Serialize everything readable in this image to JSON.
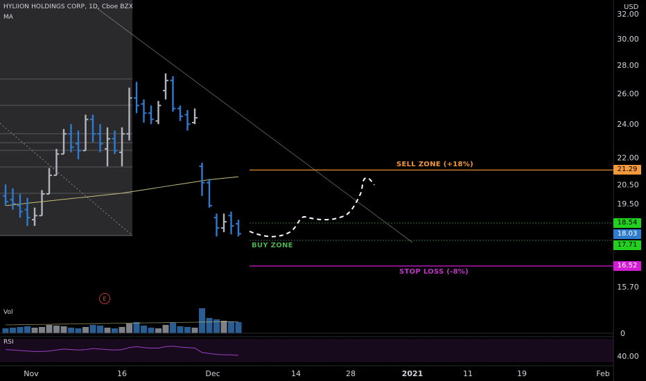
{
  "header": {
    "symbol_title": "HYLIION HOLDINGS CORP, 1D, Cboe BZX",
    "indicator_label": "MA",
    "currency": "USD"
  },
  "panes": {
    "volume_label": "Vol",
    "rsi_label": "RSI",
    "earnings_marker": "E"
  },
  "annotations": {
    "sell_zone": "SELL ZONE (+18%)",
    "stop_loss": "STOP LOSS (-8%)",
    "buy_zone": "BUY ZONE"
  },
  "price_tags": [
    {
      "value": "21.29",
      "color": "#f59a3a",
      "text_color": "#000000"
    },
    {
      "value": "18.54",
      "color": "#22d11e",
      "text_color": "#000000"
    },
    {
      "value": "18.03",
      "color": "#2e7bd0",
      "text_color": "#ffffff"
    },
    {
      "value": "17.71",
      "color": "#22d11e",
      "text_color": "#000000"
    },
    {
      "value": "16.52",
      "color": "#d41cd4",
      "text_color": "#ffffff"
    }
  ],
  "chart_data": {
    "type": "bar",
    "style": "ohlc",
    "title": "HYLIION HOLDINGS CORP, 1D, Cboe BZX",
    "price_axis": {
      "scale": "log",
      "ticks": [
        "32.00",
        "30.00",
        "28.00",
        "26.00",
        "24.00",
        "22.00",
        "20.50",
        "19.50",
        "15.70"
      ],
      "tick_values": [
        32.0,
        30.0,
        28.0,
        26.0,
        24.0,
        22.0,
        20.5,
        19.5,
        15.7
      ]
    },
    "time_axis": {
      "ticks": [
        "Nov",
        "16",
        "Dec",
        "14",
        "28",
        "2021",
        "11",
        "19",
        "Feb"
      ]
    },
    "volume_axis": {
      "ticks": [
        "0"
      ]
    },
    "rsi_axis": {
      "ticks": [
        "40.00"
      ]
    },
    "colors": {
      "up": "#b2b5be",
      "down": "#2e7bd0",
      "ma": "#c8c27a",
      "trendline": "#9598a1"
    },
    "ohlc": [
      {
        "o": 19.9,
        "h": 20.5,
        "l": 19.4,
        "c": 19.6
      },
      {
        "o": 19.7,
        "h": 20.3,
        "l": 19.2,
        "c": 19.5
      },
      {
        "o": 19.4,
        "h": 20.0,
        "l": 18.8,
        "c": 19.1
      },
      {
        "o": 19.2,
        "h": 19.8,
        "l": 18.4,
        "c": 18.8
      },
      {
        "o": 18.7,
        "h": 19.3,
        "l": 18.4,
        "c": 18.9
      },
      {
        "o": 18.9,
        "h": 20.2,
        "l": 18.9,
        "c": 20.0
      },
      {
        "o": 20.0,
        "h": 21.4,
        "l": 20.0,
        "c": 21.0
      },
      {
        "o": 21.0,
        "h": 22.5,
        "l": 21.0,
        "c": 22.2
      },
      {
        "o": 22.2,
        "h": 23.7,
        "l": 22.2,
        "c": 23.4
      },
      {
        "o": 23.4,
        "h": 24.0,
        "l": 22.3,
        "c": 22.6
      },
      {
        "o": 22.8,
        "h": 23.6,
        "l": 21.9,
        "c": 22.4
      },
      {
        "o": 22.4,
        "h": 24.6,
        "l": 22.4,
        "c": 24.3
      },
      {
        "o": 24.3,
        "h": 24.6,
        "l": 22.9,
        "c": 23.4
      },
      {
        "o": 23.4,
        "h": 24.0,
        "l": 22.3,
        "c": 22.8
      },
      {
        "o": 22.5,
        "h": 23.8,
        "l": 21.5,
        "c": 23.1
      },
      {
        "o": 23.1,
        "h": 23.6,
        "l": 22.2,
        "c": 22.4
      },
      {
        "o": 22.3,
        "h": 23.8,
        "l": 21.5,
        "c": 23.4
      },
      {
        "o": 23.4,
        "h": 26.4,
        "l": 23.0,
        "c": 25.7
      },
      {
        "o": 25.7,
        "h": 26.8,
        "l": 24.7,
        "c": 25.2
      },
      {
        "o": 25.3,
        "h": 25.6,
        "l": 24.1,
        "c": 24.7
      },
      {
        "o": 24.7,
        "h": 25.2,
        "l": 24.0,
        "c": 24.3
      },
      {
        "o": 24.2,
        "h": 25.5,
        "l": 24.0,
        "c": 25.2
      },
      {
        "o": 26.2,
        "h": 27.4,
        "l": 25.6,
        "c": 26.9
      },
      {
        "o": 26.9,
        "h": 27.2,
        "l": 24.8,
        "c": 25.0
      },
      {
        "o": 25.0,
        "h": 25.2,
        "l": 24.2,
        "c": 24.5
      },
      {
        "o": 24.6,
        "h": 24.9,
        "l": 23.6,
        "c": 24.0
      },
      {
        "o": 24.1,
        "h": 25.0,
        "l": 24.0,
        "c": 24.4
      },
      {
        "o": 21.5,
        "h": 21.7,
        "l": 19.9,
        "c": 20.6
      },
      {
        "o": 20.6,
        "h": 20.8,
        "l": 19.3,
        "c": 19.4
      },
      {
        "o": 18.8,
        "h": 19.0,
        "l": 17.9,
        "c": 18.3
      },
      {
        "o": 18.3,
        "h": 19.0,
        "l": 18.1,
        "c": 18.6
      },
      {
        "o": 18.9,
        "h": 19.1,
        "l": 18.0,
        "c": 18.4
      },
      {
        "o": 18.5,
        "h": 18.7,
        "l": 17.9,
        "c": 18.03
      }
    ],
    "moving_average": [
      19.4,
      19.44,
      19.48,
      19.52,
      19.56,
      19.6,
      19.64,
      19.68,
      19.72,
      19.76,
      19.8,
      19.84,
      19.88,
      19.92,
      19.96,
      20.0,
      20.04,
      20.1,
      20.16,
      20.22,
      20.28,
      20.34,
      20.4,
      20.46,
      20.52,
      20.58,
      20.64,
      20.7,
      20.76,
      20.8,
      20.84,
      20.88,
      20.92
    ],
    "volume": [
      0.35,
      0.4,
      0.45,
      0.5,
      0.4,
      0.45,
      0.6,
      0.55,
      0.5,
      0.4,
      0.35,
      0.45,
      0.6,
      0.55,
      0.4,
      0.35,
      0.45,
      0.7,
      0.8,
      0.55,
      0.4,
      0.35,
      0.6,
      0.75,
      0.5,
      0.45,
      0.4,
      1.8,
      1.1,
      1.0,
      0.9,
      0.85,
      0.8
    ],
    "rsi": [
      52,
      51,
      50,
      49,
      48,
      48,
      49,
      51,
      53,
      52,
      51,
      52,
      54,
      53,
      52,
      51,
      52,
      56,
      58,
      56,
      55,
      55,
      58,
      59,
      57,
      56,
      55,
      46,
      44,
      42,
      41,
      41,
      40
    ],
    "levels": {
      "sell_zone": 21.29,
      "buy_zone_top": 18.54,
      "buy_zone_bottom": 17.71,
      "stop_loss": 16.52,
      "last": 18.03
    }
  }
}
